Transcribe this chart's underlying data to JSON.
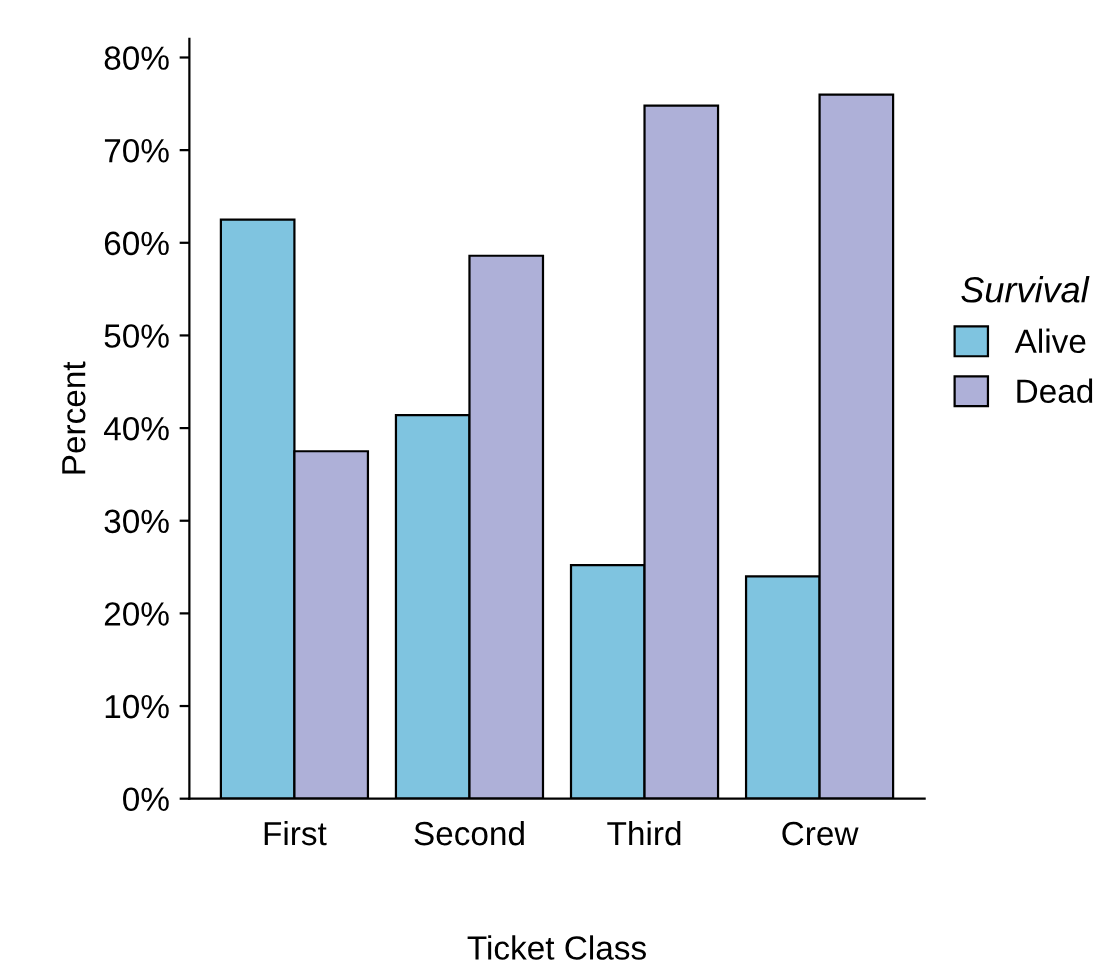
{
  "chart_data": {
    "type": "bar",
    "xlabel": "Ticket Class",
    "ylabel": "Percent",
    "legend_title": "Survival",
    "legend": "right",
    "grid": false,
    "categories": [
      "First",
      "Second",
      "Third",
      "Crew"
    ],
    "series": [
      {
        "name": "Alive",
        "color": "#7fc4e0",
        "values": [
          62.5,
          41.4,
          25.2,
          24.0
        ]
      },
      {
        "name": "Dead",
        "color": "#aeb0d8",
        "values": [
          37.5,
          58.6,
          74.8,
          76.0
        ]
      }
    ],
    "ylim": [
      0,
      82
    ],
    "yticks": [
      {
        "value": 0,
        "label": "0%"
      },
      {
        "value": 10,
        "label": "10%"
      },
      {
        "value": 20,
        "label": "20%"
      },
      {
        "value": 30,
        "label": "30%"
      },
      {
        "value": 40,
        "label": "40%"
      },
      {
        "value": 50,
        "label": "50%"
      },
      {
        "value": 60,
        "label": "60%"
      },
      {
        "value": 70,
        "label": "70%"
      },
      {
        "value": 80,
        "label": "80%"
      }
    ]
  }
}
